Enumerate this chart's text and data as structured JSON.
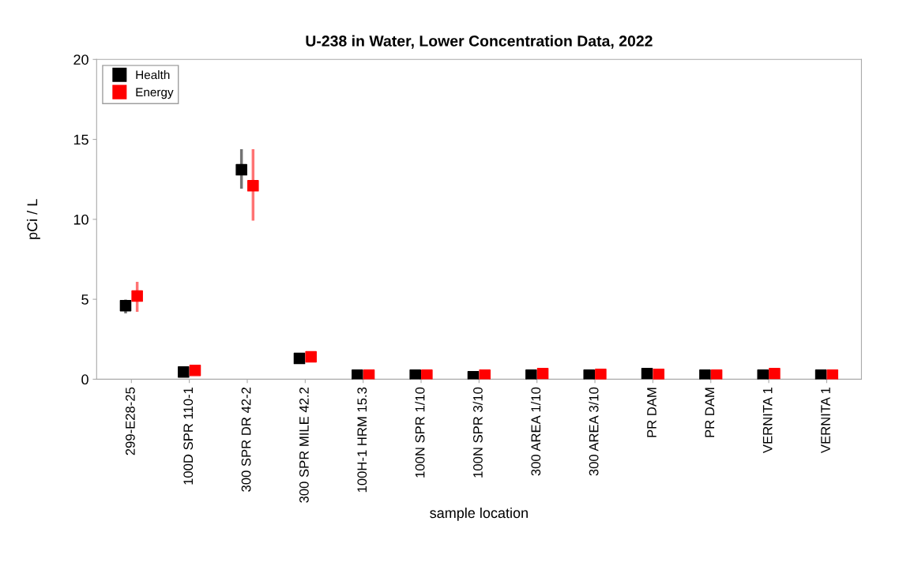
{
  "chart_data": {
    "type": "scatter",
    "title": "U-238 in Water, Lower Concentration Data, 2022",
    "xlabel": "sample location",
    "ylabel": "pCi / L",
    "categories": [
      "299-E28-25",
      "100D SPR 110-1",
      "300 SPR DR 42-2",
      "300 SPR MILE 42.2",
      "100H-1 HRM 15.3",
      "100N SPR 1/10",
      "100N SPR 3/10",
      "300 AREA 1/10",
      "300 AREA 3/10",
      "PR DAM",
      "PR DAM",
      "VERNITA 1",
      "VERNITA 1"
    ],
    "series": [
      {
        "name": "Health",
        "color": "#000000",
        "values": [
          4.6,
          0.45,
          13.1,
          1.3,
          0.25,
          0.25,
          0.15,
          0.25,
          0.25,
          0.35,
          0.25,
          0.25,
          0.25
        ],
        "errors": [
          [
            4.2,
            4.9
          ],
          null,
          [
            12.0,
            14.3
          ],
          null,
          null,
          null,
          null,
          null,
          null,
          null,
          null,
          null,
          null
        ]
      },
      {
        "name": "Energy",
        "color": "#ff0000",
        "values": [
          5.2,
          0.55,
          12.1,
          1.4,
          0.25,
          0.25,
          0.25,
          0.35,
          0.3,
          0.3,
          0.25,
          0.35,
          0.25
        ],
        "errors": [
          [
            4.3,
            6.0
          ],
          null,
          [
            10.0,
            14.3
          ],
          null,
          null,
          null,
          null,
          null,
          null,
          null,
          null,
          null,
          null
        ]
      }
    ],
    "ylim": [
      0,
      20
    ],
    "yticks": [
      0,
      5,
      10,
      15,
      20
    ],
    "grid": false,
    "legend": "top left",
    "marker": "square"
  }
}
